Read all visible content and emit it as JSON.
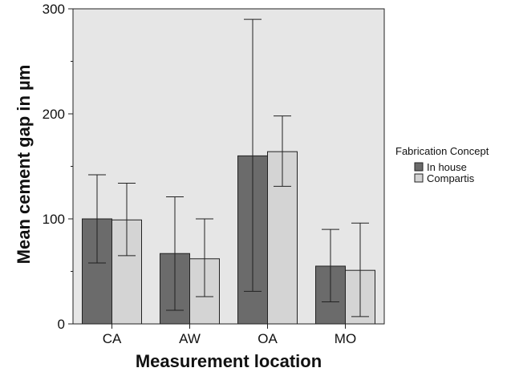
{
  "chart_data": {
    "type": "bar",
    "xlabel": "Measurement location",
    "ylabel": "Mean cement gap in µm",
    "ylim": [
      0,
      300
    ],
    "yticks": [
      0,
      100,
      200,
      300
    ],
    "categories": [
      "CA",
      "AW",
      "OA",
      "MO"
    ],
    "series": [
      {
        "name": "In house",
        "color": "#6b6b6b",
        "values": [
          100,
          67,
          160,
          55
        ],
        "err_low": [
          58,
          13,
          31,
          21
        ],
        "err_high": [
          142,
          121,
          290,
          90
        ]
      },
      {
        "name": "Compartis",
        "color": "#d4d4d4",
        "values": [
          99,
          62,
          164,
          51
        ],
        "err_low": [
          65,
          26,
          131,
          7
        ],
        "err_high": [
          134,
          100,
          198,
          96
        ]
      }
    ],
    "legend": {
      "title": "Fabrication Concept",
      "placement": "right"
    },
    "grid": false,
    "plot_background": "#e6e6e6"
  }
}
